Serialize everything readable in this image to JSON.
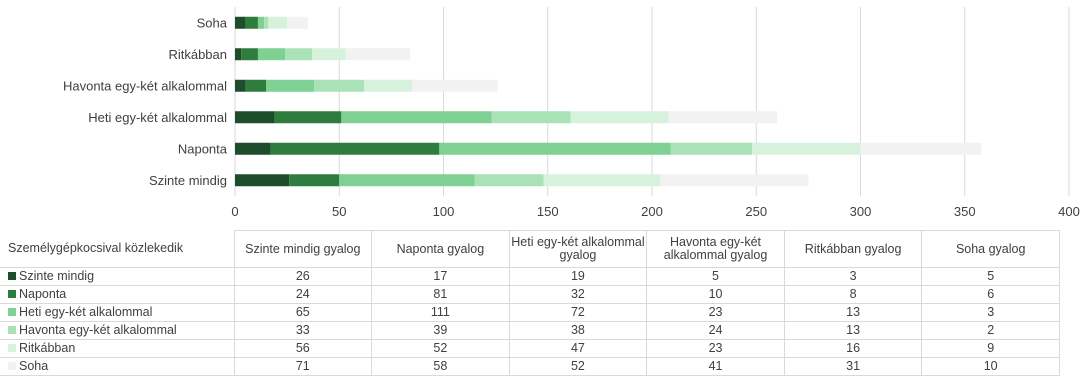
{
  "chart_data": {
    "type": "bar",
    "orientation": "horizontal",
    "stacked": true,
    "categories": [
      "Soha",
      "Ritkábban",
      "Havonta egy-két alkalommal",
      "Heti egy-két alkalommal",
      "Naponta",
      "Szinte mindig"
    ],
    "series": [
      {
        "name": "Szinte mindig",
        "color": "#1e4d2b",
        "values": [
          5,
          3,
          5,
          19,
          17,
          26
        ]
      },
      {
        "name": "Naponta",
        "color": "#2e7d3e",
        "values": [
          6,
          8,
          10,
          32,
          81,
          24
        ]
      },
      {
        "name": "Heti egy-két alkalommal",
        "color": "#7fd193",
        "values": [
          3,
          13,
          23,
          72,
          111,
          65
        ]
      },
      {
        "name": "Havonta egy-két alkalommal",
        "color": "#a9e2b6",
        "values": [
          2,
          13,
          24,
          38,
          39,
          33
        ]
      },
      {
        "name": "Ritkábban",
        "color": "#d7f2dc",
        "values": [
          9,
          16,
          23,
          47,
          52,
          56
        ]
      },
      {
        "name": "Soha",
        "color": "#f2f2f2",
        "values": [
          10,
          31,
          41,
          52,
          58,
          71
        ]
      }
    ],
    "xlim": [
      0,
      400
    ],
    "xticks": [
      "0",
      "50",
      "100",
      "150",
      "200",
      "250",
      "300",
      "350",
      "400"
    ],
    "grid": true,
    "legend": "data table below chart"
  },
  "table": {
    "corner_label": "Személygépkocsival közlekedik",
    "columns": [
      "Szinte mindig gyalog",
      "Naponta gyalog",
      "Heti egy-két alkalommal gyalog",
      "Havonta egy-két alkalommal gyalog",
      "Ritkábban gyalog",
      "Soha gyalog"
    ],
    "rows": [
      {
        "label": "Szinte mindig",
        "color": "#1e4d2b",
        "values": [
          "26",
          "17",
          "19",
          "5",
          "3",
          "5"
        ]
      },
      {
        "label": "Naponta",
        "color": "#2e7d3e",
        "values": [
          "24",
          "81",
          "32",
          "10",
          "8",
          "6"
        ]
      },
      {
        "label": "Heti egy-két alkalommal",
        "color": "#7fd193",
        "values": [
          "65",
          "111",
          "72",
          "23",
          "13",
          "3"
        ]
      },
      {
        "label": "Havonta egy-két alkalommal",
        "color": "#a9e2b6",
        "values": [
          "33",
          "39",
          "38",
          "24",
          "13",
          "2"
        ]
      },
      {
        "label": "Ritkábban",
        "color": "#d7f2dc",
        "values": [
          "56",
          "52",
          "47",
          "23",
          "16",
          "9"
        ]
      },
      {
        "label": "Soha",
        "color": "#f2f2f2",
        "values": [
          "71",
          "58",
          "52",
          "41",
          "31",
          "10"
        ]
      }
    ]
  }
}
